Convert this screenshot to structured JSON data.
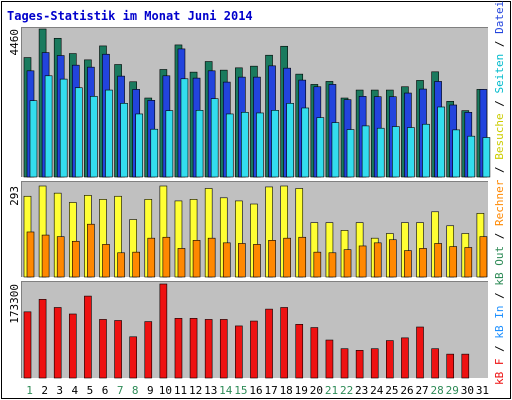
{
  "title": "Tages-Statistik im Monat Juni 2014",
  "chart_data": {
    "type": "bar",
    "title": "Tages-Statistik im Monat Juni 2014",
    "x": [
      "1",
      "2",
      "3",
      "4",
      "5",
      "6",
      "7",
      "8",
      "9",
      "10",
      "11",
      "12",
      "13",
      "14",
      "15",
      "16",
      "17",
      "18",
      "19",
      "20",
      "21",
      "22",
      "23",
      "24",
      "25",
      "26",
      "27",
      "28",
      "29",
      "30",
      "31"
    ],
    "weekend_days": [
      "1",
      "7",
      "8",
      "14",
      "15",
      "21",
      "22",
      "28",
      "29"
    ],
    "colors": {
      "anfragen": "#1a7a5e",
      "dateien": "#2244dd",
      "seiten": "#33ddee",
      "besuche": "#ffff33",
      "rechner": "#ff8800",
      "kb_f": "#ee1111",
      "weekday_label": "#000000",
      "weekend_label": "#2e8b57"
    },
    "panels": [
      {
        "axis_max": "4460",
        "ylim": [
          0,
          4460
        ],
        "series": [
          {
            "name": "Anfragen",
            "color": "#1a7a5e",
            "values": [
              3600,
              4460,
              4180,
              3720,
              3530,
              3950,
              3390,
              2870,
              2380,
              3240,
              3980,
              3160,
              3480,
              3220,
              3290,
              3340,
              3670,
              3940,
              3100,
              2790,
              2880,
              2380,
              2620,
              2620,
              2620,
              2720,
              2910,
              3170,
              2280,
              2000,
              2640
            ]
          },
          {
            "name": "Dateien",
            "color": "#2244dd",
            "values": [
              3200,
              3750,
              3660,
              3370,
              3310,
              3700,
              3040,
              2640,
              2310,
              3050,
              3860,
              2980,
              3200,
              2860,
              3010,
              3010,
              3350,
              3280,
              2920,
              2720,
              2790,
              2330,
              2430,
              2420,
              2420,
              2530,
              2650,
              2880,
              2170,
              1950,
              2640
            ]
          },
          {
            "name": "Seiten",
            "color": "#33ddee",
            "values": [
              2300,
              3050,
              2950,
              2690,
              2430,
              2620,
              2220,
              1900,
              1440,
              2000,
              2960,
              2010,
              2360,
              1900,
              1950,
              1930,
              2010,
              2220,
              2080,
              1790,
              1640,
              1430,
              1540,
              1470,
              1520,
              1490,
              1590,
              2110,
              1420,
              1230,
              1190
            ]
          }
        ]
      },
      {
        "axis_max": "293",
        "ylim": [
          0,
          293
        ],
        "series": [
          {
            "name": "Besuche",
            "color": "#ffff33",
            "values": [
              260,
              293,
              270,
              240,
              263,
              250,
              260,
              185,
              250,
              293,
              245,
              250,
              285,
              255,
              245,
              235,
              290,
              293,
              285,
              175,
              175,
              150,
              175,
              125,
              140,
              175,
              175,
              210,
              165,
              140,
              205
            ]
          },
          {
            "name": "Rechner",
            "color": "#ff8800",
            "values": [
              145,
              135,
              130,
              115,
              170,
              105,
              78,
              80,
              125,
              128,
              92,
              118,
              125,
              110,
              108,
              105,
              118,
              125,
              128,
              80,
              78,
              88,
              100,
              110,
              120,
              85,
              92,
              108,
              98,
              95,
              130
            ]
          }
        ]
      },
      {
        "axis_max": "173300",
        "ylim": [
          0,
          173300
        ],
        "series": [
          {
            "name": "KB F",
            "color": "#ee1111",
            "values": [
              122000,
              145000,
              130000,
              118000,
              151000,
              108000,
              106000,
              76000,
              104000,
              173300,
              110000,
              110000,
              108000,
              108000,
              96000,
              105000,
              127000,
              130000,
              99000,
              93000,
              70000,
              54000,
              51000,
              54000,
              69000,
              74000,
              94000,
              54000,
              44000,
              44000,
              0
            ]
          }
        ]
      }
    ],
    "right_legend": [
      {
        "text": "kB F",
        "color": "#ee1111"
      },
      {
        "text": " / ",
        "color": "#000000"
      },
      {
        "text": "kB In",
        "color": "#1e90ff"
      },
      {
        "text": " / ",
        "color": "#000000"
      },
      {
        "text": "kB Out",
        "color": "#2e8b57"
      },
      {
        "text": " / ",
        "color": "#000000"
      },
      {
        "text": "Rechner",
        "color": "#ff8800"
      },
      {
        "text": " / ",
        "color": "#000000"
      },
      {
        "text": "Besuche",
        "color": "#cccc00"
      },
      {
        "text": " / ",
        "color": "#000000"
      },
      {
        "text": "Seiten",
        "color": "#00bbcc"
      },
      {
        "text": " / ",
        "color": "#000000"
      },
      {
        "text": "Dateien",
        "color": "#2244dd"
      },
      {
        "text": " / ",
        "color": "#000000"
      },
      {
        "text": "Anfragen",
        "color": "#1a7a5e"
      }
    ]
  }
}
